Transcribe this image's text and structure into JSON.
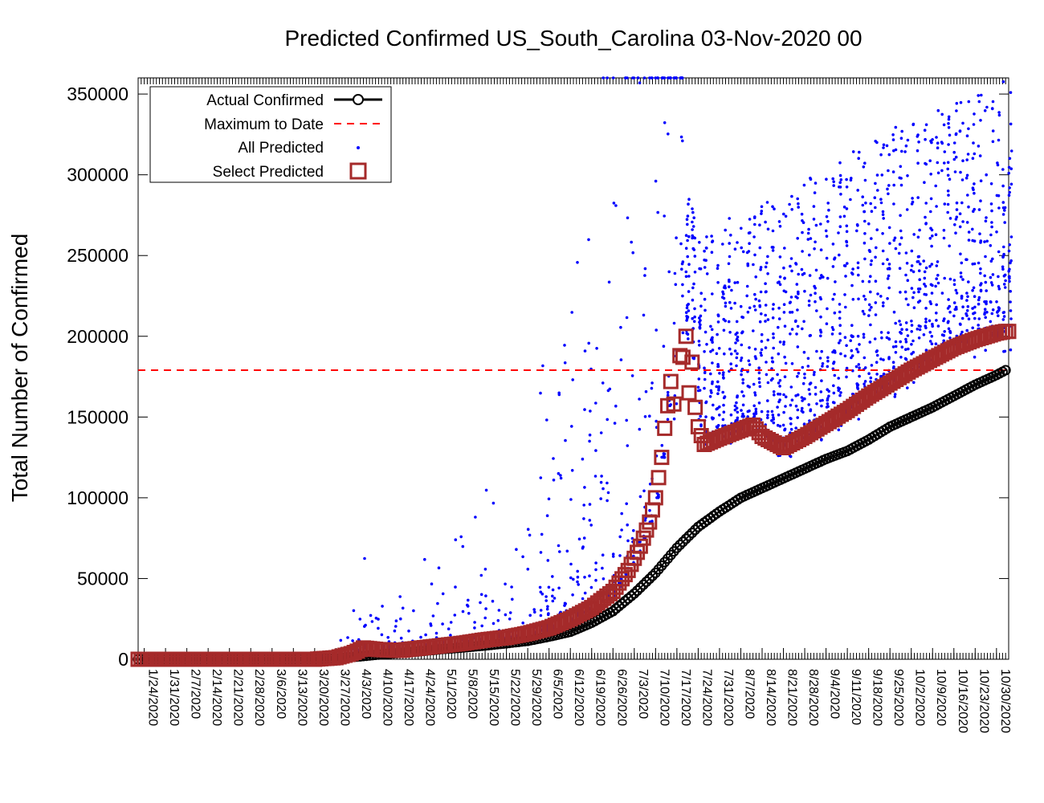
{
  "chart_data": {
    "type": "scatter",
    "title": "Predicted Confirmed US_South_Carolina 03-Nov-2020 00",
    "xlabel": "",
    "ylabel": "Total Number of Confirmed",
    "x_start": "2020-01-22",
    "x_end": "2020-11-03",
    "ylim": [
      0,
      360000
    ],
    "yticks": [
      0,
      50000,
      100000,
      150000,
      200000,
      250000,
      300000,
      350000
    ],
    "xtick_labels": [
      "1/24/2020",
      "1/31/2020",
      "2/7/2020",
      "2/14/2020",
      "2/21/2020",
      "2/28/2020",
      "3/6/2020",
      "3/13/2020",
      "3/20/2020",
      "3/27/2020",
      "4/3/2020",
      "4/10/2020",
      "4/17/2020",
      "4/24/2020",
      "5/1/2020",
      "5/8/2020",
      "5/15/2020",
      "5/22/2020",
      "5/29/2020",
      "6/5/2020",
      "6/12/2020",
      "6/19/2020",
      "6/26/2020",
      "7/3/2020",
      "7/10/2020",
      "7/17/2020",
      "7/24/2020",
      "7/31/2020",
      "8/7/2020",
      "8/14/2020",
      "8/21/2020",
      "8/28/2020",
      "9/4/2020",
      "9/11/2020",
      "9/18/2020",
      "9/25/2020",
      "10/2/2020",
      "10/9/2020",
      "10/16/2020",
      "10/23/2020",
      "10/30/2020"
    ],
    "legend": {
      "placement": "top-left",
      "entries": [
        "Actual Confirmed",
        "Maximum to Date",
        "All Predicted",
        "Select Predicted"
      ]
    },
    "maximum_to_date": 179000,
    "colors": {
      "actual": "#000000",
      "maximum": "#ff0000",
      "all_predicted": "#0000ff",
      "select_predicted": "#a52a2a"
    },
    "series": [
      {
        "name": "Actual Confirmed",
        "points": [
          [
            "1/22/2020",
            0
          ],
          [
            "3/6/2020",
            0
          ],
          [
            "3/13/2020",
            10
          ],
          [
            "3/20/2020",
            100
          ],
          [
            "3/27/2020",
            450
          ],
          [
            "4/3/2020",
            1600
          ],
          [
            "4/10/2020",
            2900
          ],
          [
            "4/17/2020",
            3900
          ],
          [
            "4/24/2020",
            5000
          ],
          [
            "5/1/2020",
            6300
          ],
          [
            "5/8/2020",
            7300
          ],
          [
            "5/15/2020",
            8500
          ],
          [
            "5/22/2020",
            9900
          ],
          [
            "5/29/2020",
            11400
          ],
          [
            "6/5/2020",
            14000
          ],
          [
            "6/12/2020",
            17000
          ],
          [
            "6/19/2020",
            22600
          ],
          [
            "6/26/2020",
            29800
          ],
          [
            "7/3/2020",
            40700
          ],
          [
            "7/10/2020",
            53500
          ],
          [
            "7/17/2020",
            69000
          ],
          [
            "7/24/2020",
            82000
          ],
          [
            "7/31/2020",
            91500
          ],
          [
            "8/7/2020",
            100000
          ],
          [
            "8/14/2020",
            106000
          ],
          [
            "8/21/2020",
            112000
          ],
          [
            "8/28/2020",
            118000
          ],
          [
            "9/4/2020",
            124000
          ],
          [
            "9/11/2020",
            129000
          ],
          [
            "9/18/2020",
            136000
          ],
          [
            "9/25/2020",
            144000
          ],
          [
            "10/2/2020",
            150000
          ],
          [
            "10/9/2020",
            156000
          ],
          [
            "10/16/2020",
            163000
          ],
          [
            "10/23/2020",
            170000
          ],
          [
            "10/30/2020",
            176000
          ],
          [
            "11/2/2020",
            179000
          ]
        ]
      },
      {
        "name": "Select Predicted",
        "points": [
          [
            "1/22/2020",
            0
          ],
          [
            "3/20/2020",
            0
          ],
          [
            "3/27/2020",
            1000
          ],
          [
            "4/1/2020",
            3500
          ],
          [
            "4/3/2020",
            5000
          ],
          [
            "4/5/2020",
            7000
          ],
          [
            "4/10/2020",
            6000
          ],
          [
            "4/17/2020",
            5500
          ],
          [
            "4/24/2020",
            7000
          ],
          [
            "5/1/2020",
            8500
          ],
          [
            "5/8/2020",
            10000
          ],
          [
            "5/15/2020",
            12000
          ],
          [
            "5/22/2020",
            13500
          ],
          [
            "5/29/2020",
            16000
          ],
          [
            "6/5/2020",
            19500
          ],
          [
            "6/12/2020",
            25000
          ],
          [
            "6/19/2020",
            32000
          ],
          [
            "6/26/2020",
            42000
          ],
          [
            "7/1/2020",
            55000
          ],
          [
            "7/5/2020",
            70000
          ],
          [
            "7/8/2020",
            85000
          ],
          [
            "7/10/2020",
            100000
          ],
          [
            "7/12/2020",
            125000
          ],
          [
            "7/13/2020",
            143000
          ],
          [
            "7/14/2020",
            157000
          ],
          [
            "7/15/2020",
            172000
          ],
          [
            "7/16/2020",
            158000
          ],
          [
            "7/18/2020",
            188000
          ],
          [
            "7/19/2020",
            187000
          ],
          [
            "7/20/2020",
            200000
          ],
          [
            "7/21/2020",
            165000
          ],
          [
            "7/22/2020",
            184000
          ],
          [
            "7/23/2020",
            156000
          ],
          [
            "7/24/2020",
            144000
          ],
          [
            "7/26/2020",
            133000
          ],
          [
            "7/31/2020",
            137000
          ],
          [
            "8/7/2020",
            142000
          ],
          [
            "8/11/2020",
            145000
          ],
          [
            "8/14/2020",
            138000
          ],
          [
            "8/21/2020",
            131000
          ],
          [
            "8/28/2020",
            138000
          ],
          [
            "9/4/2020",
            146000
          ],
          [
            "9/11/2020",
            154000
          ],
          [
            "9/18/2020",
            163000
          ],
          [
            "9/25/2020",
            171000
          ],
          [
            "10/2/2020",
            179000
          ],
          [
            "10/9/2020",
            186000
          ],
          [
            "10/16/2020",
            193000
          ],
          [
            "10/23/2020",
            198000
          ],
          [
            "10/30/2020",
            202000
          ],
          [
            "11/2/2020",
            203000
          ]
        ]
      }
    ]
  }
}
